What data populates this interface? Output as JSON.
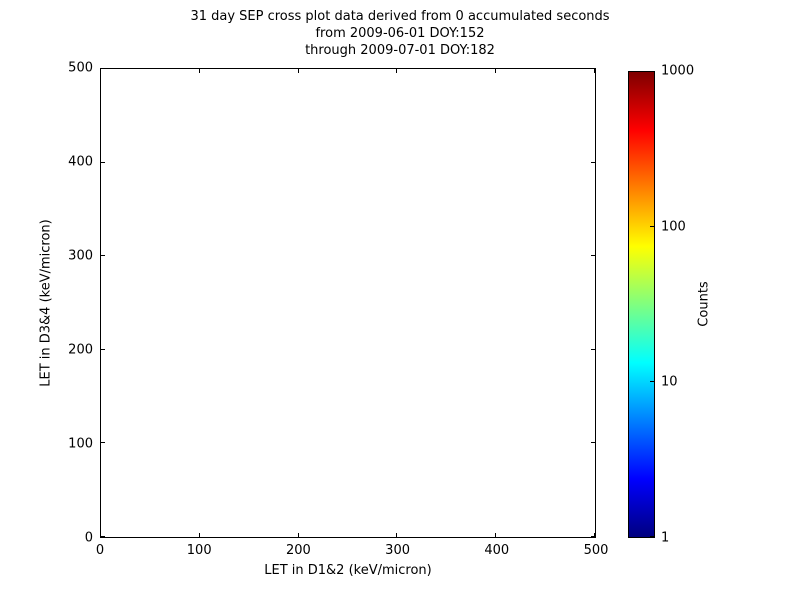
{
  "chart_data": {
    "type": "heatmap",
    "title": "31 day SEP cross plot data derived from 0 accumulated seconds",
    "subtitle_lines": [
      "from 2009-06-01 DOY:152",
      "through 2009-07-01 DOY:182"
    ],
    "xlabel": "LET in D1&2 (keV/micron)",
    "ylabel": "LET in D3&4 (keV/micron)",
    "xlim": [
      0,
      500
    ],
    "ylim": [
      0,
      500
    ],
    "x_ticks": [
      "0",
      "100",
      "200",
      "300",
      "400",
      "500"
    ],
    "y_ticks": [
      "0",
      "100",
      "200",
      "300",
      "400",
      "500"
    ],
    "grid": false,
    "points": [],
    "colors": {
      "background": "#FFFFFF",
      "axes": "#000000",
      "text": "#000000"
    },
    "colorbar": {
      "label": "Counts",
      "scale": "log",
      "min": 1,
      "max": 1000,
      "tick_labels": [
        "1",
        "10",
        "100",
        "1000"
      ],
      "colormap": "jet",
      "colors": [
        "#00007F",
        "#0000FF",
        "#00FFFF",
        "#FFFF00",
        "#FF0000",
        "#7F0000"
      ],
      "color_stops_pct": [
        0,
        12.5,
        37.5,
        62.5,
        87.5,
        100
      ]
    }
  }
}
